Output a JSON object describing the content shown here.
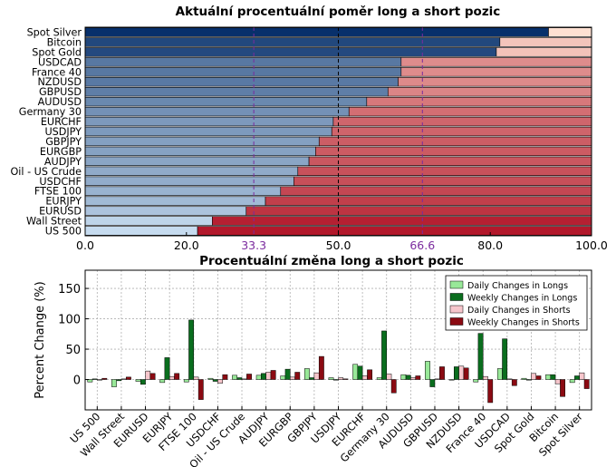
{
  "colors": {
    "long_dark": "#08306b",
    "long_light": "#c6dbef",
    "short_light": "#fee0d2",
    "short_dark": "#b2182b",
    "marker_line": "#7b2b9e",
    "daily_long": "#98e898",
    "weekly_long": "#0a6e1e",
    "daily_short": "#f7c6cc",
    "weekly_short": "#8b0a12"
  },
  "chart_data": [
    {
      "type": "bar",
      "orientation": "horizontal-stacked",
      "title": "Aktuální procentuální poměr long a short pozic",
      "categories": [
        "Spot Silver",
        "Bitcoin",
        "Spot Gold",
        "USDCAD",
        "France 40",
        "NZDUSD",
        "GBPUSD",
        "AUDUSD",
        "Germany 30",
        "EURCHF",
        "USDJPY",
        "GBPJPY",
        "EURGBP",
        "AUDJPY",
        "Oil - US Crude",
        "USDCHF",
        "FTSE 100",
        "EURJPY",
        "EURUSD",
        "Wall Street",
        "US 500"
      ],
      "series": [
        {
          "values": [
            91.5,
            81.9,
            81.2,
            62.4,
            62.4,
            61.8,
            59.8,
            55.6,
            52.1,
            49.0,
            48.7,
            46.2,
            45.5,
            44.2,
            42.0,
            41.2,
            38.6,
            35.6,
            31.8,
            25.1,
            22.2
          ]
        },
        {
          "values": [
            8.5,
            18.1,
            18.8,
            37.6,
            37.6,
            38.2,
            40.2,
            44.4,
            47.9,
            51.0,
            51.3,
            53.8,
            54.5,
            55.8,
            58.0,
            58.8,
            61.4,
            64.4,
            68.2,
            74.9,
            77.8
          ]
        }
      ],
      "xlim": [
        0,
        100
      ],
      "xticks": [
        "0.0",
        "20.0",
        "50.0",
        "80.0",
        "100.0"
      ],
      "xticks_values": [
        0,
        20,
        50,
        80,
        100
      ],
      "highlight_ticks": [
        "33.3",
        "66.6"
      ],
      "highlight_values": [
        33.3,
        66.6
      ],
      "reference_lines": [
        33.3,
        50,
        66.6
      ],
      "grid": true
    },
    {
      "type": "bar",
      "title": "Procentuální změna long a short pozic",
      "ylabel": "Percent Change (%)",
      "categories": [
        "US 500",
        "Wall Street",
        "EURUSD",
        "EURJPY",
        "FTSE 100",
        "USDCHF",
        "Oil - US Crude",
        "AUDJPY",
        "EURGBP",
        "GBPJPY",
        "USDJPY",
        "EURCHF",
        "Germany 30",
        "AUDUSD",
        "GBPUSD",
        "NZDUSD",
        "France 40",
        "USDCAD",
        "Spot Gold",
        "Bitcoin",
        "Spot Silver"
      ],
      "series": [
        {
          "name": "Daily Changes in Longs",
          "values": [
            -4,
            -12,
            -3,
            -5,
            -4,
            2,
            7,
            7,
            6,
            18,
            3,
            25,
            3,
            8,
            30,
            -1,
            -4,
            18,
            2,
            8,
            -5
          ]
        },
        {
          "name": "Weekly Changes in Longs",
          "values": [
            1,
            -2,
            -8,
            36,
            98,
            -3,
            3,
            10,
            17,
            3,
            -1,
            22,
            80,
            7,
            -12,
            21,
            76,
            67,
            -1,
            8,
            6
          ]
        },
        {
          "name": "Daily Changes in Shorts",
          "values": [
            -1,
            1,
            14,
            5,
            4,
            -6,
            1,
            12,
            4,
            11,
            3,
            6,
            9,
            3,
            1,
            22,
            5,
            1,
            10,
            -7,
            11
          ]
        },
        {
          "name": "Weekly Changes in Shorts",
          "values": [
            2,
            4,
            10,
            10,
            -33,
            8,
            9,
            15,
            12,
            38,
            1,
            16,
            -22,
            6,
            21,
            19,
            -38,
            -10,
            6,
            -28,
            -15
          ]
        }
      ],
      "ylim": [
        -50,
        180
      ],
      "yticks": [
        "0",
        "50",
        "100",
        "150"
      ],
      "yticks_values": [
        0,
        50,
        100,
        150
      ],
      "legend": "top-right",
      "grid": true
    }
  ]
}
